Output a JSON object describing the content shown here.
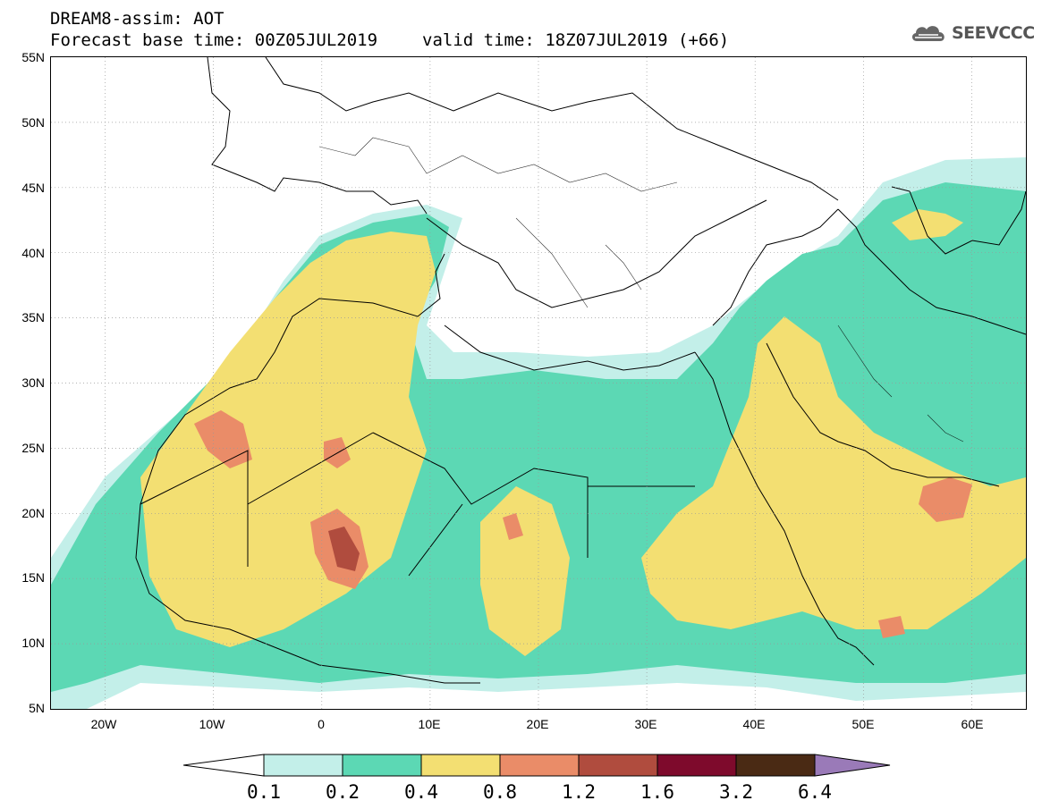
{
  "header": {
    "line1": "DREAM8-assim: AOT",
    "base_time": "Forecast base time: 00Z05JUL2019",
    "valid_time": "valid time: 18Z07JUL2019 (+66)"
  },
  "logo": {
    "text": "SEEVCCC",
    "icon": "cloud-icon"
  },
  "map": {
    "lat_ticks": [
      "55N",
      "50N",
      "45N",
      "40N",
      "35N",
      "30N",
      "25N",
      "20N",
      "15N",
      "10N",
      "5N"
    ],
    "lon_ticks": [
      "20W",
      "10W",
      "0",
      "10E",
      "20E",
      "30E",
      "40E",
      "50E",
      "60E"
    ],
    "lon_range": [
      -25,
      65
    ],
    "lat_range": [
      5,
      55
    ]
  },
  "colorbar": {
    "labels": [
      "0.1",
      "0.2",
      "0.4",
      "0.8",
      "1.2",
      "1.6",
      "3.2",
      "6.4"
    ],
    "colors": [
      "#c3efe9",
      "#5cd8b4",
      "#f3df72",
      "#ea8c68",
      "#b04c3e",
      "#7e0a2c",
      "#4a2a14"
    ],
    "under_color": "#ffffff",
    "over_color": "#9a7ab8"
  },
  "fields": {
    "colors": {
      "very_low": "#c3efe9",
      "low": "#5cd8b4",
      "mid": "#f3df72",
      "high": "#ea8c68",
      "very_high": "#b04c3e"
    }
  }
}
